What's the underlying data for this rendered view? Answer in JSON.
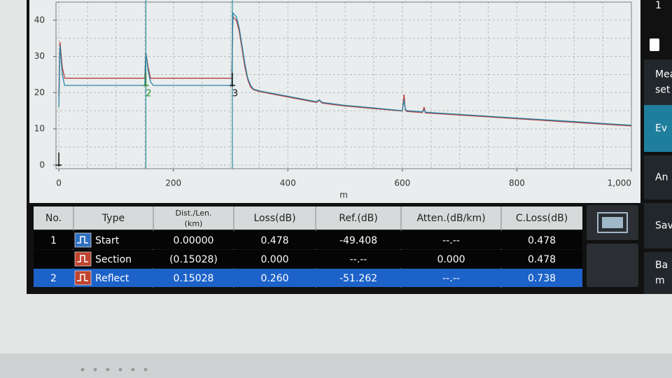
{
  "chart_data": {
    "type": "line",
    "x_label": "m",
    "x": [
      0,
      2,
      6,
      10,
      150,
      152,
      156,
      160,
      165,
      300,
      302,
      304,
      310,
      315,
      320,
      325,
      330,
      335,
      340,
      350,
      400,
      450,
      455,
      460,
      500,
      550,
      600,
      603,
      605,
      608,
      610,
      635,
      638,
      640,
      650,
      700,
      750,
      800,
      850,
      900,
      950,
      1000
    ],
    "series": [
      {
        "color": "#2a86a8",
        "values": [
          16,
          33,
          25,
          22,
          22,
          31,
          26,
          23,
          22,
          22,
          22,
          42,
          41,
          38,
          33,
          28,
          24,
          22,
          21,
          20.5,
          19,
          17.5,
          18,
          17.3,
          16.5,
          15.8,
          15,
          18,
          15.5,
          15,
          15,
          14.7,
          15.2,
          14.6,
          14.5,
          14,
          13.5,
          13,
          12.5,
          12,
          11.5,
          11
        ]
      },
      {
        "color": "#b83a3a",
        "values": [
          19,
          34,
          27,
          24,
          24,
          31,
          27,
          24,
          24,
          24,
          24,
          41,
          40,
          37,
          32,
          27,
          23.5,
          21.5,
          20.8,
          20.3,
          18.8,
          17.3,
          17.8,
          17.1,
          16.3,
          15.6,
          14.9,
          19.5,
          15.3,
          14.8,
          14.8,
          14.5,
          16,
          14.4,
          14.3,
          13.8,
          13.3,
          12.8,
          12.3,
          11.8,
          11.3,
          10.8
        ]
      }
    ],
    "xlim": [
      -5,
      1000
    ],
    "xticks": [
      0,
      200,
      400,
      600,
      800,
      {
        "value": 1000,
        "label": "1,000"
      }
    ],
    "ylim": [
      -1,
      45
    ],
    "yticks": [
      0,
      10,
      20,
      30,
      40
    ],
    "grid": true,
    "cursors": [
      152,
      303
    ],
    "markers": [
      {
        "x": 0
      },
      {
        "x": 152,
        "label": "2"
      },
      {
        "x": 303,
        "label": "3"
      }
    ]
  },
  "table": {
    "columns": [
      [
        "No."
      ],
      [
        "Type"
      ],
      [
        "Dist./Len.",
        "(km)"
      ],
      [
        "Loss(dB)"
      ],
      [
        "Ref.(dB)"
      ],
      [
        "Atten.(dB/km)"
      ],
      [
        "C.Loss(dB)"
      ]
    ],
    "rows": [
      [
        "1",
        "Start",
        "0.00000",
        "0.478",
        "-49.408",
        "--.--",
        "0.478"
      ],
      [
        null,
        "Section",
        "(0.15028)",
        "0.000",
        "--.--",
        "0.000",
        "0.478"
      ],
      [
        "2",
        "Reflect",
        "0.15028",
        "0.260",
        "-51.262",
        "--.--",
        "0.738"
      ]
    ],
    "selected_row": 2
  },
  "sidebar": {
    "items": [
      [
        "1"
      ],
      [
        "Mea",
        "set"
      ],
      [
        "Ev"
      ],
      [
        "An"
      ],
      [
        "Sav"
      ],
      [
        "Ba",
        "m"
      ]
    ],
    "selected": 2
  }
}
